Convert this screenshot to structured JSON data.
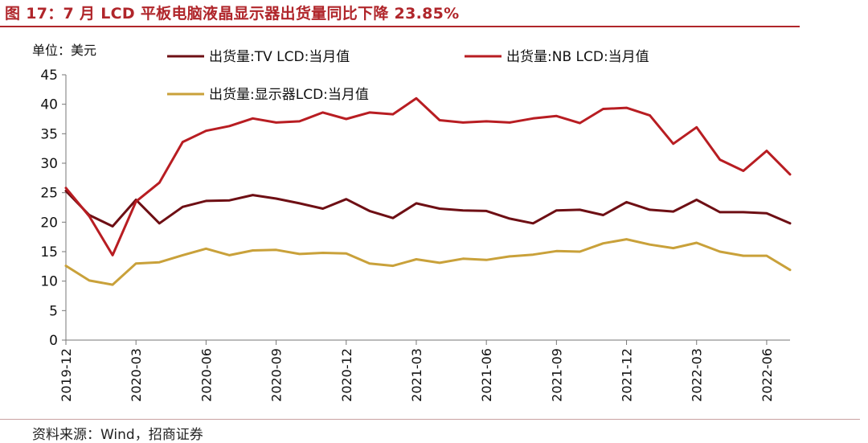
{
  "header": {
    "title": "图 17：7 月 LCD 平板电脑液晶显示器出货量同比下降 23.85%"
  },
  "footer": {
    "source": "资料来源：Wind，招商证券"
  },
  "colors": {
    "title": "#b0262b",
    "tv_lcd": "#6e0f14",
    "nb_lcd": "#b81d22",
    "monitor_lcd": "#c9a13a"
  },
  "chart_data": {
    "type": "line",
    "title": "图 17：7 月 LCD 平板电脑液晶显示器出货量同比下降 23.85%",
    "ylabel": "单位：美元",
    "xlabel": "",
    "ylim": [
      0,
      45
    ],
    "yticks": [
      "0",
      "5",
      "10",
      "15",
      "20",
      "25",
      "30",
      "35",
      "40",
      "45"
    ],
    "xtick_labels": [
      "2019-12",
      "2020-03",
      "2020-06",
      "2020-09",
      "2020-12",
      "2021-03",
      "2021-06",
      "2021-09",
      "2021-12",
      "2022-03",
      "2022-06"
    ],
    "x": [
      "2019-12",
      "2020-01",
      "2020-02",
      "2020-03",
      "2020-04",
      "2020-05",
      "2020-06",
      "2020-07",
      "2020-08",
      "2020-09",
      "2020-10",
      "2020-11",
      "2020-12",
      "2021-01",
      "2021-02",
      "2021-03",
      "2021-04",
      "2021-05",
      "2021-06",
      "2021-07",
      "2021-08",
      "2021-09",
      "2021-10",
      "2021-11",
      "2021-12",
      "2022-01",
      "2022-02",
      "2022-03",
      "2022-04",
      "2022-05",
      "2022-06",
      "2022-07"
    ],
    "legend_position": "top",
    "series": [
      {
        "name": "出货量:TV LCD:当月值",
        "color": "#6e0f14",
        "values": [
          25.3,
          21.2,
          19.3,
          23.8,
          19.8,
          22.6,
          23.6,
          23.7,
          24.6,
          24.0,
          23.2,
          22.3,
          23.9,
          21.9,
          20.7,
          23.2,
          22.3,
          22.0,
          21.9,
          20.6,
          19.8,
          22.0,
          22.1,
          21.2,
          23.4,
          22.1,
          21.8,
          23.8,
          21.7,
          21.7,
          21.5,
          19.8
        ]
      },
      {
        "name": "出货量:NB LCD:当月值",
        "color": "#b81d22",
        "values": [
          25.8,
          21.0,
          14.4,
          23.5,
          26.7,
          33.6,
          35.5,
          36.3,
          37.6,
          36.9,
          37.1,
          38.6,
          37.5,
          38.6,
          38.3,
          41.0,
          37.3,
          36.9,
          37.1,
          36.9,
          37.6,
          38.0,
          36.8,
          39.2,
          39.4,
          38.1,
          33.3,
          36.1,
          30.6,
          28.7,
          32.1,
          28.1
        ]
      },
      {
        "name": "出货量:显示器LCD:当月值",
        "color": "#c9a13a",
        "values": [
          12.6,
          10.1,
          9.4,
          13.0,
          13.2,
          14.4,
          15.5,
          14.4,
          15.2,
          15.3,
          14.6,
          14.8,
          14.7,
          13.0,
          12.6,
          13.7,
          13.1,
          13.8,
          13.6,
          14.2,
          14.5,
          15.1,
          15.0,
          16.4,
          17.1,
          16.2,
          15.6,
          16.5,
          15.0,
          14.3,
          14.3,
          11.9
        ]
      }
    ]
  }
}
